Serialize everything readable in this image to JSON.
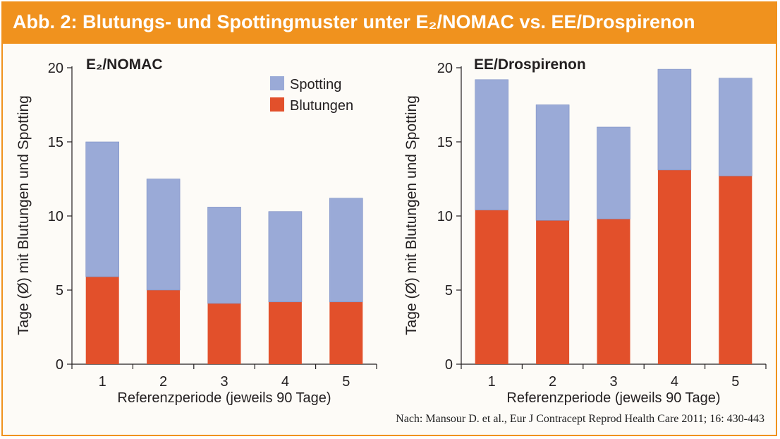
{
  "title": "Abb. 2: Blutungs- und Spottingmuster unter E₂/NOMAC vs. EE/Drospirenon",
  "source": "Nach: Mansour D. et al., Eur J Contracept Reprod Health Care 2011; 16: 430-443",
  "colors": {
    "header": "#f0921e",
    "spotting": "#9aaad7",
    "blutungen": "#e2502b"
  },
  "chart_data": [
    {
      "type": "bar",
      "stacked": true,
      "title": "E₂/NOMAC",
      "xlabel": "Referenzperiode (jeweils 90 Tage)",
      "ylabel": "Tage (Ø) mit Blutungen und Spotting",
      "ylim": [
        0,
        20
      ],
      "yticks": [
        0,
        5,
        10,
        15,
        20
      ],
      "categories": [
        "1",
        "2",
        "3",
        "4",
        "5"
      ],
      "legend": {
        "position": "top-right",
        "entries": [
          "Spotting",
          "Blutungen"
        ]
      },
      "series": [
        {
          "name": "Blutungen",
          "values": [
            5.9,
            5.0,
            4.1,
            4.2,
            4.2
          ]
        },
        {
          "name": "Spotting",
          "values": [
            9.1,
            7.5,
            6.5,
            6.1,
            7.0
          ]
        }
      ]
    },
    {
      "type": "bar",
      "stacked": true,
      "title": "EE/Drospirenon",
      "xlabel": "Referenzperiode (jeweils 90 Tage)",
      "ylabel": "Tage (Ø) mit Blutungen und Spotting",
      "ylim": [
        0,
        20
      ],
      "yticks": [
        0,
        5,
        10,
        15,
        20
      ],
      "categories": [
        "1",
        "2",
        "3",
        "4",
        "5"
      ],
      "series": [
        {
          "name": "Blutungen",
          "values": [
            10.4,
            9.7,
            9.8,
            13.1,
            12.7
          ]
        },
        {
          "name": "Spotting",
          "values": [
            8.8,
            7.8,
            6.2,
            6.8,
            6.6
          ]
        }
      ]
    }
  ]
}
